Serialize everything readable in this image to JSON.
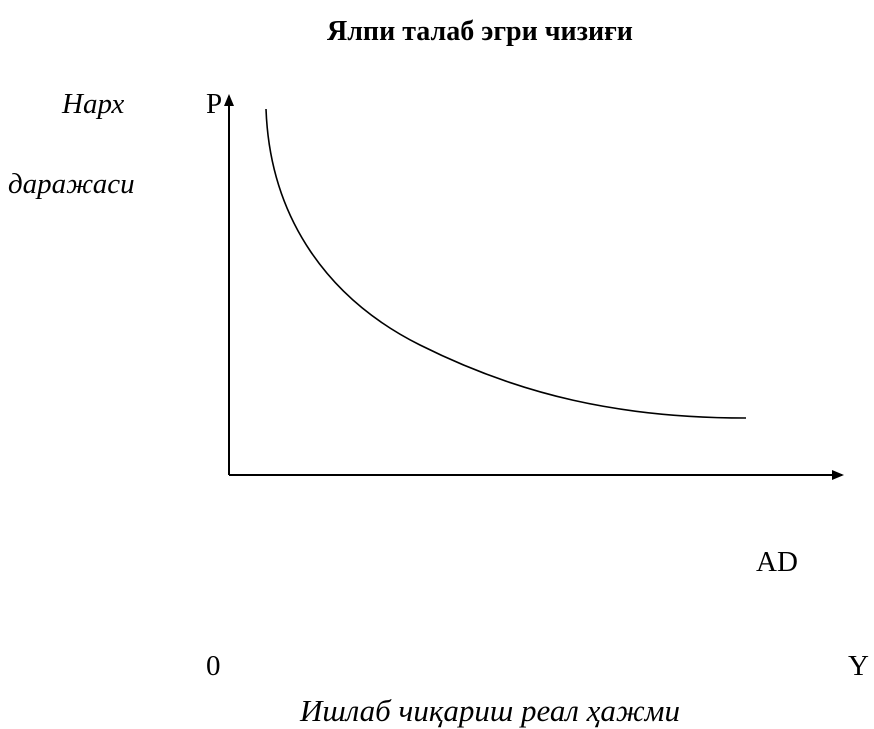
{
  "title": "Ялпи талаб эгри чизиғи",
  "y_axis": {
    "label_line1": "Нарх",
    "label_line2": "даражаси",
    "symbol": "P"
  },
  "x_axis": {
    "label": "Ишлаб чиқариш реал ҳажми",
    "symbol": "Y"
  },
  "origin": "0",
  "curve": {
    "label": "AD",
    "shape": "downward-sloping convex curve"
  },
  "colors": {
    "line": "#000000",
    "background": "#ffffff"
  }
}
